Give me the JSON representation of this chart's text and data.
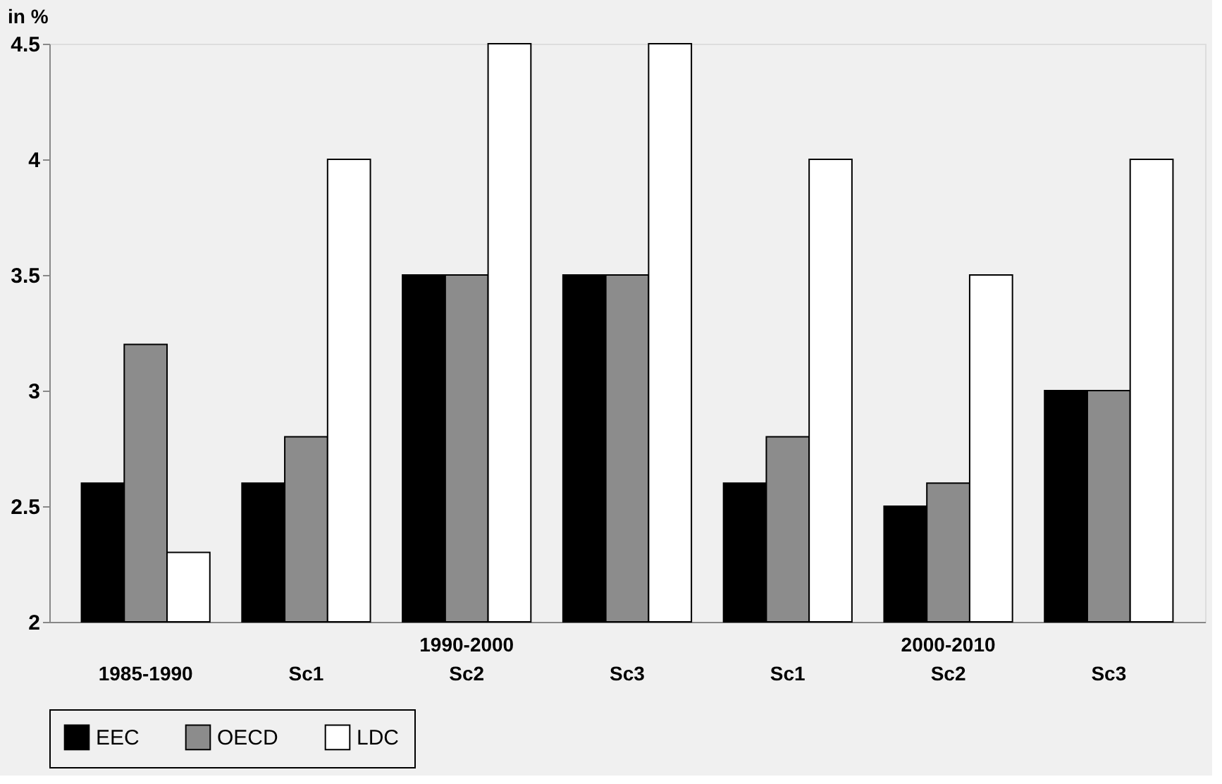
{
  "chart_data": {
    "type": "bar",
    "ylabel": "in %",
    "categories": [
      "1985-1990",
      "Sc1",
      "Sc2",
      "Sc3",
      "Sc1",
      "Sc2",
      "Sc3"
    ],
    "series": [
      {
        "name": "EEC",
        "color": "#000000",
        "values": [
          2.6,
          2.6,
          3.5,
          3.5,
          2.6,
          2.5,
          3.0
        ]
      },
      {
        "name": "OECD",
        "color": "#8c8c8c",
        "values": [
          3.2,
          2.8,
          3.5,
          3.5,
          2.8,
          2.6,
          3.0
        ]
      },
      {
        "name": "LDC",
        "color": "#ffffff",
        "values": [
          2.3,
          4.0,
          4.5,
          4.5,
          4.0,
          3.5,
          4.0
        ]
      }
    ],
    "annotations": [
      "1990-2000",
      "2000-2010"
    ],
    "ylim": [
      2,
      4.5
    ],
    "yticks": [
      2,
      2.5,
      3,
      3.5,
      4,
      4.5
    ],
    "grid": false,
    "legend": "bottom"
  }
}
